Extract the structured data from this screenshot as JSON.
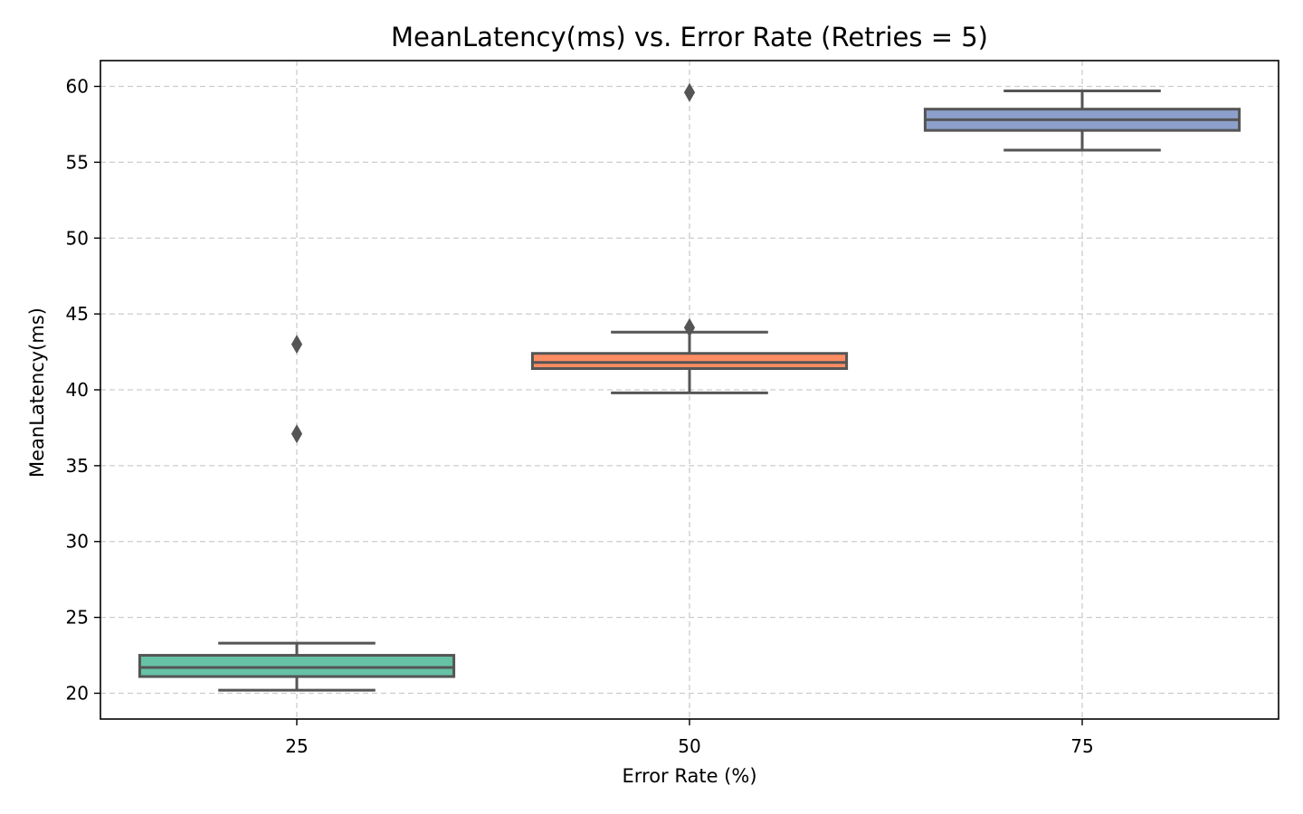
{
  "chart_data": {
    "type": "box",
    "title": "MeanLatency(ms) vs. Error Rate (Retries = 5)",
    "xlabel": "Error Rate (%)",
    "ylabel": "MeanLatency(ms)",
    "categories": [
      "25",
      "50",
      "75"
    ],
    "ylim": [
      18.3,
      61.7
    ],
    "yticks": [
      20,
      25,
      30,
      35,
      40,
      45,
      50,
      55,
      60
    ],
    "grid": true,
    "boxes": [
      {
        "category": "25",
        "whisker_low": 20.2,
        "q1": 21.1,
        "median": 21.7,
        "q3": 22.5,
        "whisker_high": 23.3,
        "outliers": [
          43.0,
          37.1
        ],
        "color": "#66c2a5"
      },
      {
        "category": "50",
        "whisker_low": 39.8,
        "q1": 41.4,
        "median": 41.8,
        "q3": 42.4,
        "whisker_high": 43.8,
        "outliers": [
          59.6,
          44.1
        ],
        "color": "#fc8d62"
      },
      {
        "category": "75",
        "whisker_low": 55.8,
        "q1": 57.1,
        "median": 57.8,
        "q3": 58.5,
        "whisker_high": 59.7,
        "outliers": [],
        "color": "#8da0cb"
      }
    ]
  }
}
